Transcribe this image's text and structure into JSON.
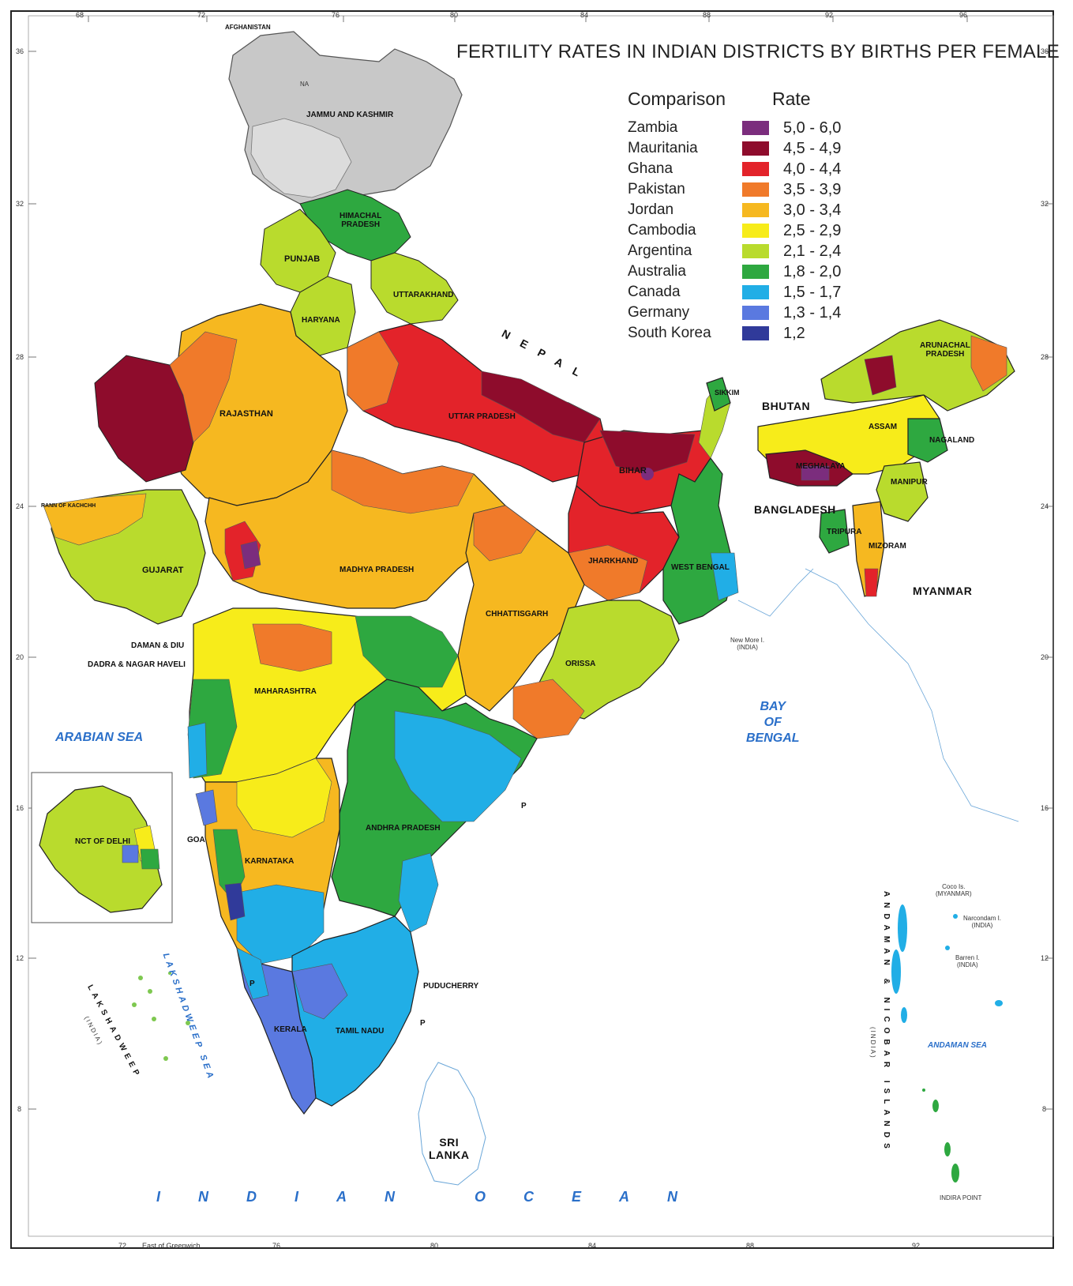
{
  "title": "FERTILITY RATES IN INDIAN DISTRICTS BY BIRTHS PER FEMALE",
  "legend": {
    "comparison_header": "Comparison",
    "rate_header": "Rate",
    "rows": [
      {
        "country": "Zambia",
        "rate": "5,0 - 6,0",
        "color": "#7b2d7d"
      },
      {
        "country": "Mauritania",
        "rate": "4,5 - 4,9",
        "color": "#8e0c2c"
      },
      {
        "country": "Ghana",
        "rate": "4,0 - 4,4",
        "color": "#e3232a"
      },
      {
        "country": "Pakistan",
        "rate": "3,5 - 3,9",
        "color": "#f07a2a"
      },
      {
        "country": "Jordan",
        "rate": "3,0 - 3,4",
        "color": "#f6b820"
      },
      {
        "country": "Cambodia",
        "rate": "2,5 - 2,9",
        "color": "#f7ec1a"
      },
      {
        "country": "Argentina",
        "rate": "2,1 - 2,4",
        "color": "#b9db2d"
      },
      {
        "country": "Australia",
        "rate": "1,8 - 2,0",
        "color": "#2ea840"
      },
      {
        "country": "Canada",
        "rate": "1,5 - 1,7",
        "color": "#21aee6"
      },
      {
        "country": "Germany",
        "rate": "1,3 - 1,4",
        "color": "#5a79e0"
      },
      {
        "country": "South Korea",
        "rate": "1,2",
        "color": "#303a9a"
      }
    ]
  },
  "labels": {
    "afghanistan": "AFGHANISTAN",
    "na": "NA",
    "jammu_kashmir": "JAMMU AND KASHMIR",
    "himachal": "HIMACHAL\nPRADESH",
    "punjab": "PUNJAB",
    "uttarakhand": "UTTARAKHAND",
    "haryana": "HARYANA",
    "rajasthan": "RAJASTHAN",
    "uttar_pradesh": "UTTAR PRADESH",
    "bihar": "BIHAR",
    "sikkim": "SIKKIM",
    "arunachal": "ARUNACHAL\nPRADESH",
    "assam": "ASSAM",
    "nagaland": "NAGALAND",
    "meghalaya": "MEGHALAYA",
    "manipur": "MANIPUR",
    "tripura": "TRIPURA",
    "mizoram": "MIZORAM",
    "gujarat": "GUJARAT",
    "madhya_pradesh": "MADHYA PRADESH",
    "jharkhand": "JHARKHAND",
    "west_bengal": "WEST BENGAL",
    "chhattisgarh": "CHHATTISGARH",
    "orissa": "ORISSA",
    "maharashtra": "MAHARASHTRA",
    "daman_diu": "DAMAN & DIU",
    "dadra": "DADRA & NAGAR HAVELI",
    "goa": "GOA",
    "karnataka": "KARNATAKA",
    "andhra": "ANDHRA PRADESH",
    "puducherry": "PUDUCHERRY",
    "kerala": "KERALA",
    "tamil_nadu": "TAMIL NADU",
    "delhi": "NCT OF DELHI",
    "nepal": "N E P A L",
    "bhutan": "BHUTAN",
    "bangladesh": "BANGLADESH",
    "myanmar": "MYANMAR",
    "sri_lanka": "SRI\nLANKA",
    "arabian_sea": "ARABIAN SEA",
    "bay_of_bengal": "BAY\nOF\nBENGAL",
    "andaman_sea": "ANDAMAN SEA",
    "indian_ocean": "INDIAN OCEAN",
    "lakshadweep_sea": "LAKSHADWEEP SEA",
    "lakshadweep": "LAKSHADWEEP",
    "india_paren": "(INDIA)",
    "andaman_islands": "ANDAMAN & NICOBAR ISLANDS",
    "rann": "RANN OF KACHCHH",
    "new_moore": "New More I.\n(INDIA)",
    "coco": "Coco Is.\n(MYANMAR)",
    "narcondam": "Narcondam I.\n(INDIA)",
    "barren": "Barren I.\n(INDIA)",
    "indira_point": "INDIRA POINT",
    "east_greenwich": "East of Greenwich",
    "p": "P"
  },
  "graticule": {
    "longitudes_top": [
      "68",
      "72",
      "76",
      "80",
      "84",
      "88",
      "92",
      "96"
    ],
    "longitudes_bottom": [
      "72",
      "76",
      "80",
      "84",
      "88",
      "92"
    ],
    "latitudes": [
      "36",
      "32",
      "28",
      "24",
      "20",
      "16",
      "12",
      "8"
    ]
  }
}
